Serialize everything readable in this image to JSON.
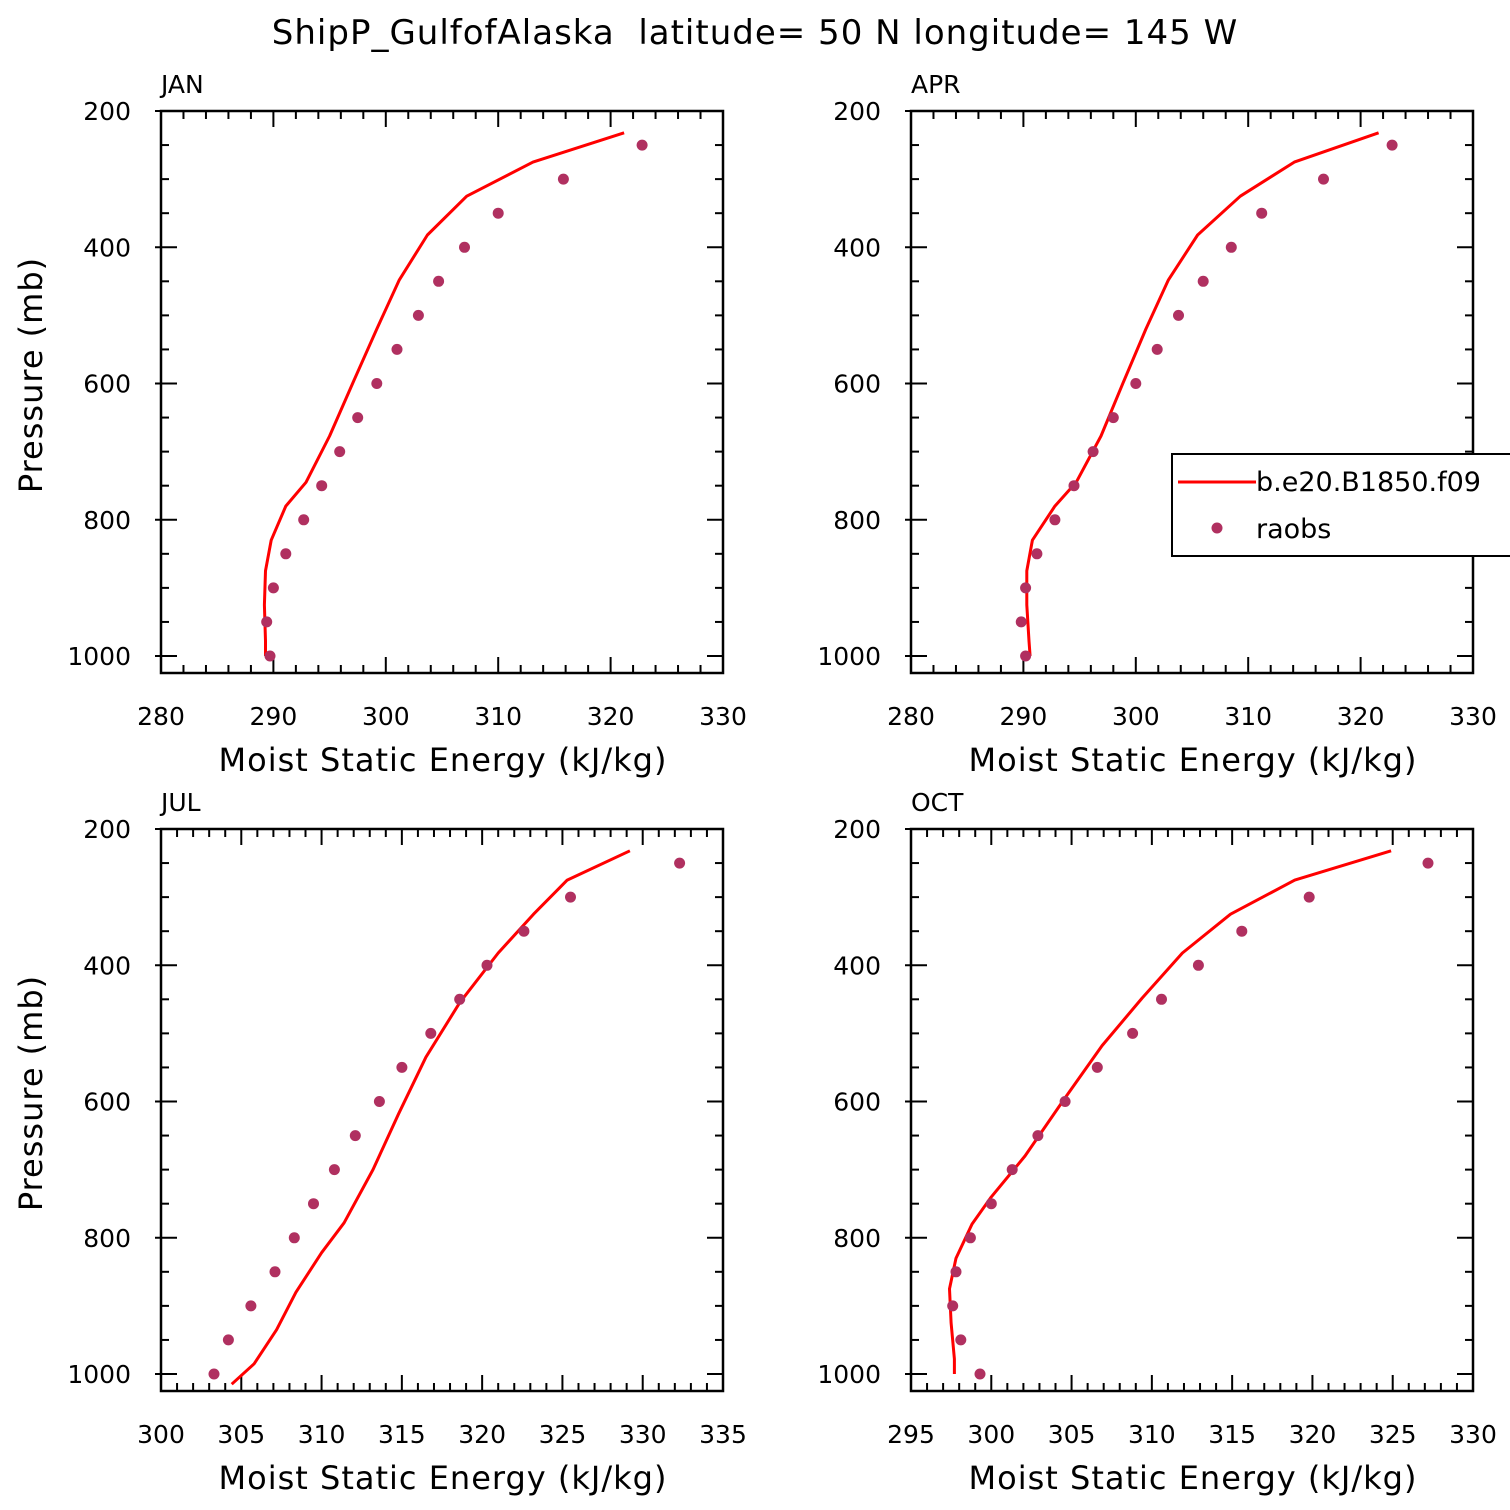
{
  "title": "ShipP_GulfofAlaska  latitude= 50 N longitude= 145 W",
  "colors": {
    "model_line": "#ff0000",
    "raobs_marker": "#b03060",
    "axes": "#000000"
  },
  "legend": {
    "model_label": "b.e20.B1850.f09",
    "obs_label": "raobs"
  },
  "chart_data": [
    {
      "type": "line",
      "title": "JAN",
      "xlabel": "Moist Static Energy (kJ/kg)",
      "ylabel": "Pressure (mb)",
      "xlim": [
        280,
        330
      ],
      "ylim": [
        200,
        1000
      ],
      "y_inverted": true,
      "x_ticks": [
        280,
        290,
        300,
        310,
        320,
        330
      ],
      "y_ticks": [
        200,
        400,
        600,
        800,
        1000
      ],
      "series": [
        {
          "name": "b.e20.B1850.f09",
          "style": "line",
          "points": [
            [
              321.2,
              232
            ],
            [
              313.1,
              275
            ],
            [
              307.2,
              325
            ],
            [
              303.7,
              382
            ],
            [
              301.2,
              448
            ],
            [
              299.2,
              520
            ],
            [
              297.1,
              598
            ],
            [
              295.0,
              677
            ],
            [
              292.9,
              745
            ],
            [
              291.1,
              780
            ],
            [
              289.8,
              830
            ],
            [
              289.3,
              875
            ],
            [
              289.2,
              925
            ],
            [
              289.3,
              978
            ],
            [
              289.3,
              1000
            ]
          ]
        },
        {
          "name": "raobs",
          "style": "marker",
          "points": [
            [
              322.8,
              250
            ],
            [
              315.8,
              300
            ],
            [
              310.0,
              350
            ],
            [
              307.0,
              400
            ],
            [
              304.7,
              450
            ],
            [
              302.9,
              500
            ],
            [
              301.0,
              550
            ],
            [
              299.2,
              600
            ],
            [
              297.5,
              650
            ],
            [
              295.9,
              700
            ],
            [
              294.3,
              750
            ],
            [
              292.7,
              800
            ],
            [
              291.1,
              850
            ],
            [
              290.0,
              900
            ],
            [
              289.4,
              950
            ],
            [
              289.7,
              1000
            ]
          ]
        }
      ],
      "legend": false
    },
    {
      "type": "line",
      "title": "APR",
      "xlabel": "Moist Static Energy (kJ/kg)",
      "ylabel": "",
      "xlim": [
        280,
        330
      ],
      "ylim": [
        200,
        1000
      ],
      "y_inverted": true,
      "x_ticks": [
        280,
        290,
        300,
        310,
        320,
        330
      ],
      "y_ticks": [
        200,
        400,
        600,
        800,
        1000
      ],
      "series": [
        {
          "name": "b.e20.B1850.f09",
          "style": "line",
          "points": [
            [
              321.6,
              232
            ],
            [
              314.1,
              275
            ],
            [
              309.3,
              325
            ],
            [
              305.5,
              382
            ],
            [
              302.9,
              448
            ],
            [
              300.9,
              520
            ],
            [
              298.9,
              598
            ],
            [
              296.9,
              677
            ],
            [
              294.7,
              745
            ],
            [
              292.8,
              780
            ],
            [
              290.8,
              830
            ],
            [
              290.3,
              875
            ],
            [
              290.3,
              925
            ],
            [
              290.5,
              978
            ],
            [
              290.6,
              1000
            ]
          ]
        },
        {
          "name": "raobs",
          "style": "marker",
          "points": [
            [
              322.8,
              250
            ],
            [
              316.7,
              300
            ],
            [
              311.2,
              350
            ],
            [
              308.5,
              400
            ],
            [
              306.0,
              450
            ],
            [
              303.8,
              500
            ],
            [
              301.9,
              550
            ],
            [
              300.0,
              600
            ],
            [
              298.0,
              650
            ],
            [
              296.2,
              700
            ],
            [
              294.5,
              750
            ],
            [
              292.8,
              800
            ],
            [
              291.2,
              850
            ],
            [
              290.2,
              900
            ],
            [
              289.8,
              950
            ],
            [
              290.2,
              1000
            ]
          ]
        }
      ],
      "legend": true,
      "legend_position": "right"
    },
    {
      "type": "line",
      "title": "JUL",
      "xlabel": "Moist Static Energy (kJ/kg)",
      "ylabel": "Pressure (mb)",
      "xlim": [
        300,
        335
      ],
      "ylim": [
        200,
        1000
      ],
      "y_inverted": true,
      "x_ticks": [
        300,
        305,
        310,
        315,
        320,
        325,
        330,
        335
      ],
      "y_ticks": [
        200,
        400,
        600,
        800,
        1000
      ],
      "series": [
        {
          "name": "b.e20.B1850.f09",
          "style": "line",
          "points": [
            [
              329.2,
              232
            ],
            [
              325.3,
              275
            ],
            [
              323.2,
              325
            ],
            [
              321.0,
              382
            ],
            [
              318.6,
              455
            ],
            [
              316.5,
              535
            ],
            [
              314.8,
              618
            ],
            [
              313.2,
              700
            ],
            [
              311.4,
              778
            ],
            [
              310.0,
              822
            ],
            [
              308.4,
              880
            ],
            [
              307.2,
              935
            ],
            [
              305.8,
              985
            ],
            [
              304.4,
              1015
            ]
          ]
        },
        {
          "name": "raobs",
          "style": "marker",
          "points": [
            [
              332.3,
              250
            ],
            [
              325.5,
              300
            ],
            [
              322.6,
              350
            ],
            [
              320.3,
              400
            ],
            [
              318.6,
              450
            ],
            [
              316.8,
              500
            ],
            [
              315.0,
              550
            ],
            [
              313.6,
              600
            ],
            [
              312.1,
              650
            ],
            [
              310.8,
              700
            ],
            [
              309.5,
              750
            ],
            [
              308.3,
              800
            ],
            [
              307.1,
              850
            ],
            [
              305.6,
              900
            ],
            [
              304.2,
              950
            ],
            [
              303.3,
              1000
            ]
          ]
        }
      ],
      "legend": false
    },
    {
      "type": "line",
      "title": "OCT",
      "xlabel": "Moist Static Energy (kJ/kg)",
      "ylabel": "",
      "xlim": [
        295,
        330
      ],
      "ylim": [
        200,
        1000
      ],
      "y_inverted": true,
      "x_ticks": [
        295,
        300,
        305,
        310,
        315,
        320,
        325,
        330
      ],
      "y_ticks": [
        200,
        400,
        600,
        800,
        1000
      ],
      "series": [
        {
          "name": "b.e20.B1850.f09",
          "style": "line",
          "points": [
            [
              324.9,
              232
            ],
            [
              318.9,
              275
            ],
            [
              314.9,
              325
            ],
            [
              311.9,
              382
            ],
            [
              309.4,
              448
            ],
            [
              306.9,
              518
            ],
            [
              304.5,
              598
            ],
            [
              302.1,
              680
            ],
            [
              300.0,
              740
            ],
            [
              298.8,
              780
            ],
            [
              297.8,
              830
            ],
            [
              297.4,
              875
            ],
            [
              297.5,
              925
            ],
            [
              297.7,
              978
            ],
            [
              297.7,
              1000
            ]
          ]
        },
        {
          "name": "raobs",
          "style": "marker",
          "points": [
            [
              327.2,
              250
            ],
            [
              319.8,
              300
            ],
            [
              315.6,
              350
            ],
            [
              312.9,
              400
            ],
            [
              310.6,
              450
            ],
            [
              308.8,
              500
            ],
            [
              306.6,
              550
            ],
            [
              304.6,
              600
            ],
            [
              302.9,
              650
            ],
            [
              301.3,
              700
            ],
            [
              300.0,
              750
            ],
            [
              298.7,
              800
            ],
            [
              297.8,
              850
            ],
            [
              297.6,
              900
            ],
            [
              298.1,
              950
            ],
            [
              299.3,
              1000
            ]
          ]
        }
      ],
      "legend": false
    }
  ]
}
